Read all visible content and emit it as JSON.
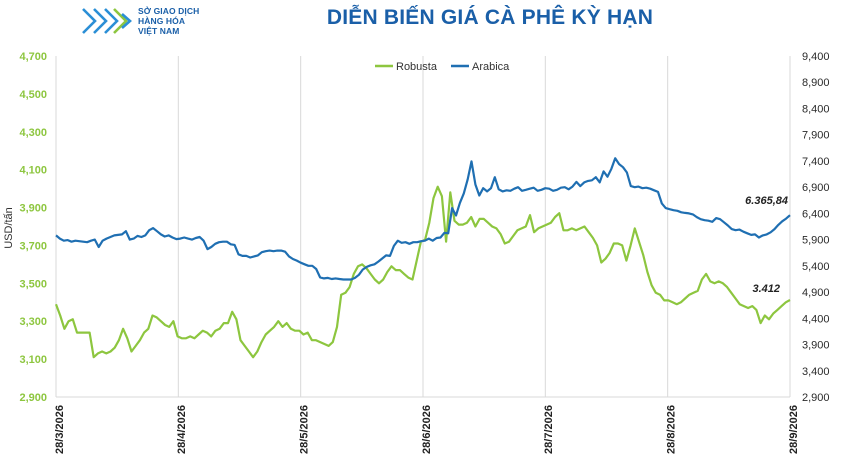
{
  "header": {
    "logo_line1": "SỞ GIAO DỊCH",
    "logo_line2": "HÀNG HÓA",
    "logo_line3": "VIỆT NAM",
    "title": "DIỄN BIẾN GIÁ CÀ PHÊ KỲ HẠN"
  },
  "chart_data": {
    "type": "line",
    "ylabel": "USD/tấn",
    "left_axis": {
      "ylim": [
        2900,
        4700
      ],
      "ticks": [
        "2,900",
        "3,100",
        "3,300",
        "3,500",
        "3,700",
        "3,900",
        "4,100",
        "4,300",
        "4,500",
        "4,700"
      ],
      "color": "#8dc63f"
    },
    "right_axis": {
      "ylim": [
        2900,
        9400
      ],
      "ticks": [
        "2,900",
        "3,400",
        "3,900",
        "4,400",
        "4,900",
        "5,400",
        "5,900",
        "6,400",
        "6,900",
        "7,400",
        "7,900",
        "8,400",
        "8,900",
        "9,400"
      ],
      "color": "#2a2a2a"
    },
    "x_labels": [
      "28/3/2026",
      "28/4/2026",
      "28/5/2026",
      "28/6/2026",
      "28/7/2026",
      "28/8/2026",
      "28/9/2026"
    ],
    "grid": "vertical",
    "legend_position": "top-center",
    "series": [
      {
        "name": "Robusta",
        "axis": "left",
        "color": "#8dc63f",
        "values": [
          3390,
          3330,
          3260,
          3300,
          3310,
          3240,
          3240,
          3240,
          3240,
          3110,
          3130,
          3140,
          3130,
          3140,
          3160,
          3200,
          3260,
          3210,
          3140,
          3170,
          3200,
          3240,
          3260,
          3330,
          3320,
          3300,
          3280,
          3270,
          3300,
          3220,
          3210,
          3210,
          3220,
          3210,
          3230,
          3250,
          3240,
          3220,
          3250,
          3260,
          3290,
          3290,
          3350,
          3310,
          3200,
          3170,
          3140,
          3110,
          3140,
          3190,
          3230,
          3250,
          3270,
          3300,
          3270,
          3290,
          3260,
          3250,
          3250,
          3230,
          3240,
          3200,
          3200,
          3190,
          3180,
          3170,
          3190,
          3270,
          3440,
          3450,
          3480,
          3550,
          3590,
          3600,
          3580,
          3550,
          3520,
          3500,
          3520,
          3560,
          3590,
          3570,
          3570,
          3550,
          3530,
          3520,
          3620,
          3720,
          3730,
          3820,
          3950,
          4010,
          3960,
          3720,
          3980,
          3830,
          3810,
          3810,
          3820,
          3850,
          3800,
          3840,
          3840,
          3820,
          3800,
          3790,
          3760,
          3710,
          3720,
          3750,
          3780,
          3790,
          3800,
          3860,
          3770,
          3790,
          3800,
          3810,
          3820,
          3850,
          3870,
          3780,
          3780,
          3790,
          3780,
          3790,
          3800,
          3770,
          3740,
          3700,
          3610,
          3630,
          3660,
          3710,
          3710,
          3700,
          3620,
          3700,
          3790,
          3720,
          3650,
          3560,
          3490,
          3450,
          3440,
          3410,
          3410,
          3400,
          3390,
          3400,
          3420,
          3440,
          3450,
          3460,
          3520,
          3550,
          3510,
          3500,
          3510,
          3500,
          3480,
          3450,
          3420,
          3390,
          3380,
          3370,
          3380,
          3360,
          3290,
          3330,
          3310,
          3340,
          3360,
          3380,
          3400,
          3412
        ]
      },
      {
        "name": "Arabica",
        "axis": "right",
        "color": "#1f6fb2",
        "values": [
          5980,
          5920,
          5880,
          5890,
          5860,
          5880,
          5870,
          5860,
          5850,
          5880,
          5900,
          5760,
          5880,
          5920,
          5950,
          5980,
          5990,
          6000,
          6060,
          5900,
          5920,
          5970,
          5950,
          5980,
          6080,
          6120,
          6060,
          6000,
          5960,
          5980,
          5940,
          5910,
          5920,
          5940,
          5920,
          5900,
          5930,
          5950,
          5880,
          5720,
          5760,
          5820,
          5850,
          5860,
          5860,
          5810,
          5800,
          5620,
          5590,
          5590,
          5560,
          5580,
          5600,
          5660,
          5680,
          5690,
          5680,
          5690,
          5690,
          5670,
          5580,
          5530,
          5500,
          5460,
          5430,
          5400,
          5400,
          5340,
          5180,
          5160,
          5170,
          5150,
          5160,
          5150,
          5140,
          5140,
          5140,
          5170,
          5230,
          5330,
          5380,
          5410,
          5430,
          5480,
          5540,
          5600,
          5590,
          5780,
          5880,
          5840,
          5850,
          5820,
          5850,
          5850,
          5870,
          5880,
          5920,
          5880,
          5930,
          5940,
          6030,
          6020,
          6500,
          6360,
          6600,
          6780,
          7050,
          7390,
          6950,
          6740,
          6880,
          6820,
          6880,
          7090,
          6860,
          6820,
          6840,
          6830,
          6870,
          6900,
          6830,
          6850,
          6870,
          6890,
          6830,
          6850,
          6880,
          6870,
          6830,
          6850,
          6890,
          6900,
          6860,
          6910,
          7000,
          6920,
          6990,
          7020,
          7030,
          7090,
          6990,
          7200,
          7100,
          7250,
          7450,
          7340,
          7280,
          7180,
          6920,
          6900,
          6910,
          6880,
          6890,
          6870,
          6840,
          6810,
          6590,
          6500,
          6480,
          6460,
          6450,
          6420,
          6410,
          6400,
          6380,
          6330,
          6290,
          6270,
          6260,
          6240,
          6310,
          6290,
          6230,
          6170,
          6100,
          6080,
          6090,
          6050,
          6020,
          5990,
          6000,
          5940,
          5980,
          6000,
          6040,
          6100,
          6180,
          6250,
          6300,
          6365.84
        ]
      }
    ],
    "annotations": [
      {
        "series": "Arabica",
        "text": "6.365,84"
      },
      {
        "series": "Robusta",
        "text": "3.412"
      }
    ]
  }
}
